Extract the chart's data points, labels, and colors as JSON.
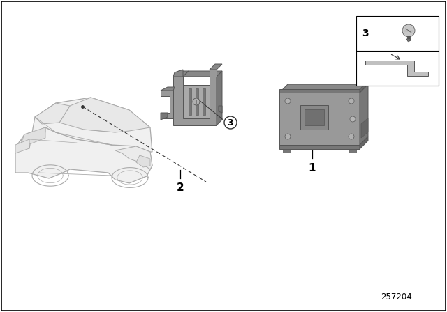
{
  "background_color": "#ffffff",
  "border_color": "#000000",
  "part_number": "257204",
  "label_1": "1",
  "label_2": "2",
  "label_3": "3",
  "text_color": "#000000",
  "line_color": "#555555",
  "car_line_color": "#aaaaaa",
  "part_face_color": "#999999",
  "part_top_color": "#888888",
  "part_side_color": "#777777",
  "part_light_color": "#bbbbbb",
  "part_edge_color": "#555555"
}
